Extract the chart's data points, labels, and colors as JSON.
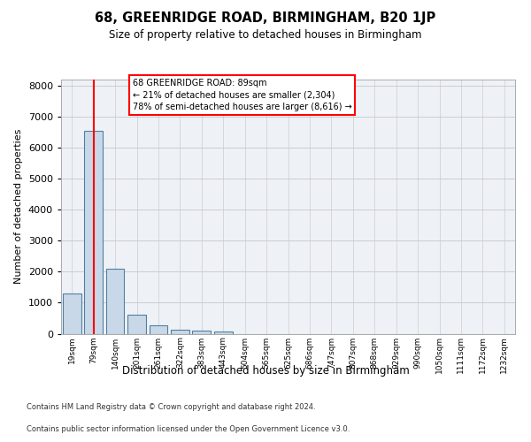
{
  "title": "68, GREENRIDGE ROAD, BIRMINGHAM, B20 1JP",
  "subtitle": "Size of property relative to detached houses in Birmingham",
  "xlabel": "Distribution of detached houses by size in Birmingham",
  "ylabel": "Number of detached properties",
  "footnote1": "Contains HM Land Registry data © Crown copyright and database right 2024.",
  "footnote2": "Contains public sector information licensed under the Open Government Licence v3.0.",
  "annotation_line1": "68 GREENRIDGE ROAD: 89sqm",
  "annotation_line2": "← 21% of detached houses are smaller (2,304)",
  "annotation_line3": "78% of semi-detached houses are larger (8,616) →",
  "bar_labels": [
    "19sqm",
    "79sqm",
    "140sqm",
    "201sqm",
    "261sqm",
    "322sqm",
    "383sqm",
    "443sqm",
    "504sqm",
    "565sqm",
    "625sqm",
    "686sqm",
    "747sqm",
    "807sqm",
    "868sqm",
    "929sqm",
    "990sqm",
    "1050sqm",
    "1111sqm",
    "1172sqm",
    "1232sqm"
  ],
  "bar_values": [
    1300,
    6550,
    2100,
    620,
    260,
    130,
    100,
    60,
    0,
    0,
    0,
    0,
    0,
    0,
    0,
    0,
    0,
    0,
    0,
    0,
    0
  ],
  "bar_color": "#c8d8e8",
  "bar_edge_color": "#5080a0",
  "property_line_x": 1,
  "ylim": [
    0,
    8200
  ],
  "yticks": [
    0,
    1000,
    2000,
    3000,
    4000,
    5000,
    6000,
    7000,
    8000
  ],
  "grid_color": "#cccccc",
  "bg_color": "#eef2f7"
}
